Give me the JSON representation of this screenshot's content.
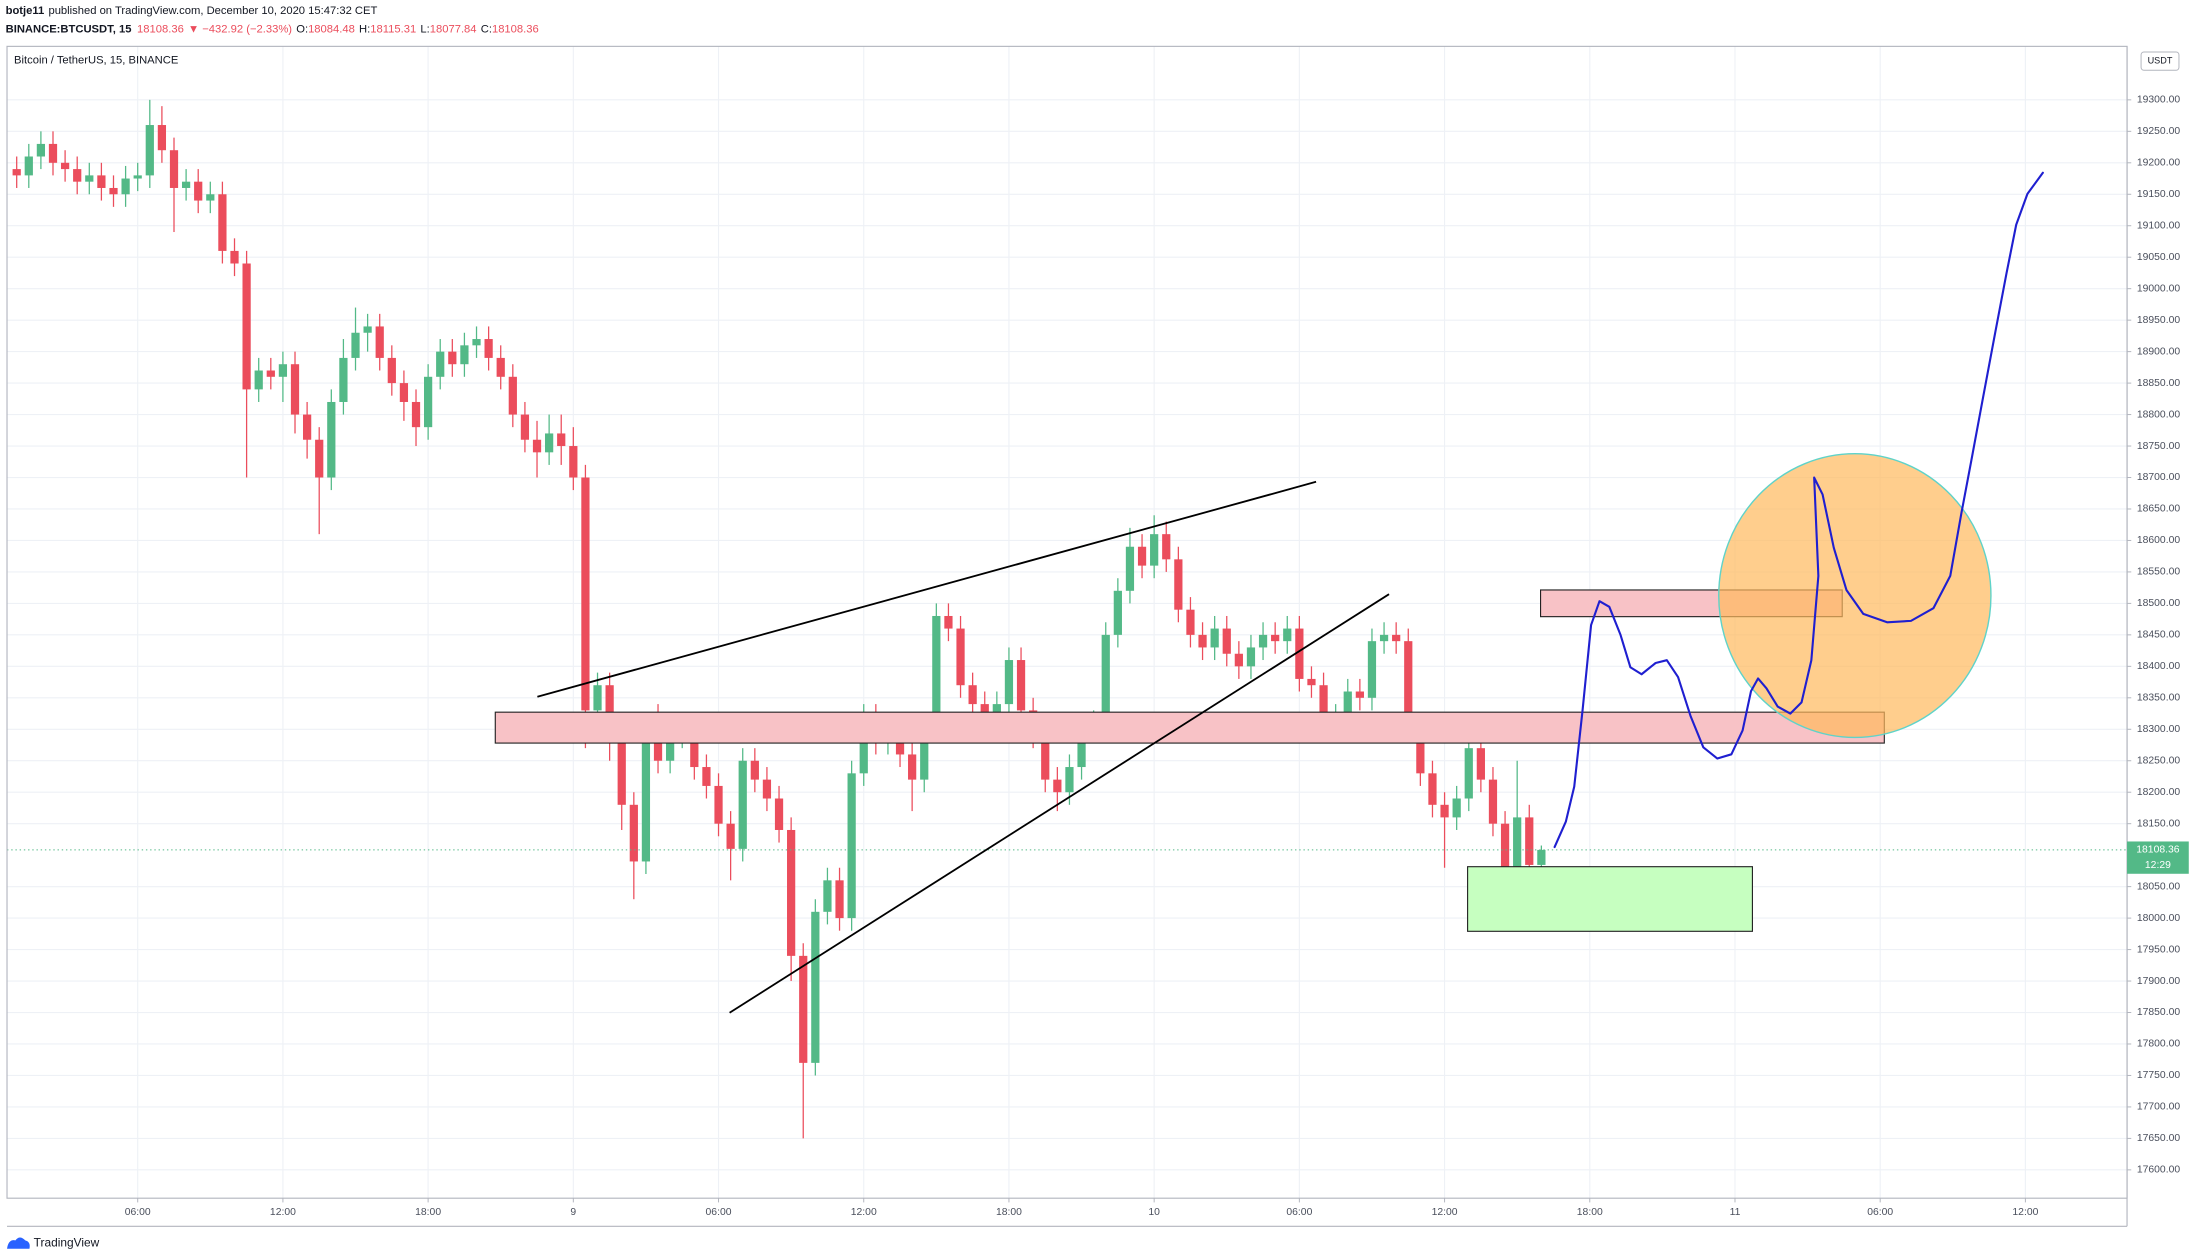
{
  "header": {
    "publisher": "botje11",
    "published": "published on TradingView.com, December 10, 2020 15:47:32 CET",
    "symbol": "BINANCE:BTCUSDT, 15",
    "change": "▼ −432.92 (−2.33%)",
    "ohlc_labels": [
      "O:",
      "H:",
      "L:",
      "C:"
    ]
  },
  "chart_data": {
    "type": "candlestick",
    "title": "Bitcoin / TetherUS, 15, BINANCE",
    "currency": "USDT",
    "countdown": "12:29",
    "up_color": "#53b987",
    "down_color": "#eb4d5c",
    "grid": true,
    "xlim": [
      0.6,
      88.2
    ],
    "xticks": [
      {
        "value": 6,
        "label": "06:00"
      },
      {
        "value": 12,
        "label": "12:00"
      },
      {
        "value": 18,
        "label": "18:00"
      },
      {
        "value": 24,
        "label": "9"
      },
      {
        "value": 30,
        "label": "06:00"
      },
      {
        "value": 36,
        "label": "12:00"
      },
      {
        "value": 42,
        "label": "18:00"
      },
      {
        "value": 48,
        "label": "10"
      },
      {
        "value": 54,
        "label": "06:00"
      },
      {
        "value": 60,
        "label": "12:00"
      },
      {
        "value": 66,
        "label": "18:00"
      },
      {
        "value": 72,
        "label": "11"
      },
      {
        "value": 78,
        "label": "06:00"
      },
      {
        "value": 84,
        "label": "12:00"
      }
    ],
    "ylim": [
      17555,
      19385
    ],
    "yticks": [
      {
        "value": 17600,
        "label": "17600.00"
      },
      {
        "value": 17650,
        "label": "17650.00"
      },
      {
        "value": 17700,
        "label": "17700.00"
      },
      {
        "value": 17750,
        "label": "17750.00"
      },
      {
        "value": 17800,
        "label": "17800.00"
      },
      {
        "value": 17850,
        "label": "17850.00"
      },
      {
        "value": 17900,
        "label": "17900.00"
      },
      {
        "value": 17950,
        "label": "17950.00"
      },
      {
        "value": 18000,
        "label": "18000.00"
      },
      {
        "value": 18050,
        "label": "18050.00"
      },
      {
        "value": 18150,
        "label": "18150.00"
      },
      {
        "value": 18200,
        "label": "18200.00"
      },
      {
        "value": 18250,
        "label": "18250.00"
      },
      {
        "value": 18300,
        "label": "18300.00"
      },
      {
        "value": 18350,
        "label": "18350.00"
      },
      {
        "value": 18400,
        "label": "18400.00"
      },
      {
        "value": 18450,
        "label": "18450.00"
      },
      {
        "value": 18500,
        "label": "18500.00"
      },
      {
        "value": 18550,
        "label": "18550.00"
      },
      {
        "value": 18600,
        "label": "18600.00"
      },
      {
        "value": 18650,
        "label": "18650.00"
      },
      {
        "value": 18700,
        "label": "18700.00"
      },
      {
        "value": 18750,
        "label": "18750.00"
      },
      {
        "value": 18800,
        "label": "18800.00"
      },
      {
        "value": 18850,
        "label": "18850.00"
      },
      {
        "value": 18900,
        "label": "18900.00"
      },
      {
        "value": 18950,
        "label": "18950.00"
      },
      {
        "value": 19000,
        "label": "19000.00"
      },
      {
        "value": 19050,
        "label": "19050.00"
      },
      {
        "value": 19100,
        "label": "19100.00"
      },
      {
        "value": 19150,
        "label": "19150.00"
      },
      {
        "value": 19200,
        "label": "19200.00"
      },
      {
        "value": 19250,
        "label": "19250.00"
      },
      {
        "value": 19300,
        "label": "19300.00"
      }
    ],
    "x": [
      1,
      1.5,
      2,
      2.5,
      3,
      3.5,
      4,
      4.5,
      5,
      5.5,
      6,
      6.5,
      7,
      7.5,
      8,
      8.5,
      9,
      9.5,
      10,
      10.5,
      11,
      11.5,
      12,
      12.5,
      13,
      13.5,
      14,
      14.5,
      15,
      15.5,
      16,
      16.5,
      17,
      17.5,
      18,
      18.5,
      19,
      19.5,
      20,
      20.5,
      21,
      21.5,
      22,
      22.5,
      23,
      23.5,
      24,
      24.5,
      25,
      25.5,
      26,
      26.5,
      27,
      27.5,
      28,
      28.5,
      29,
      29.5,
      30,
      30.5,
      31,
      31.5,
      32,
      32.5,
      33,
      33.5,
      34,
      34.5,
      35,
      35.5,
      36,
      36.5,
      37,
      37.5,
      38,
      38.5,
      39,
      39.5,
      40,
      40.5,
      41,
      41.5,
      42,
      42.5,
      43,
      43.5,
      44,
      44.5,
      45,
      45.5,
      46,
      46.5,
      47,
      47.5,
      48,
      48.5,
      49,
      49.5,
      50,
      50.5,
      51,
      51.5,
      52,
      52.5,
      53,
      53.5,
      54,
      54.5,
      55,
      55.5,
      56,
      56.5,
      57,
      57.5,
      58,
      58.5,
      59,
      59.5,
      60,
      60.5,
      61,
      61.5,
      62,
      62.5,
      63,
      63.5,
      64
    ],
    "open": [
      19190,
      19180,
      19210,
      19230,
      19200,
      19190,
      19170,
      19180,
      19160,
      19150,
      19175,
      19180,
      19260,
      19220,
      19160,
      19170,
      19140,
      19150,
      19060,
      19040,
      18840,
      18870,
      18860,
      18880,
      18800,
      18760,
      18700,
      18820,
      18890,
      18930,
      18940,
      18890,
      18850,
      18820,
      18780,
      18860,
      18900,
      18880,
      18910,
      18920,
      18890,
      18860,
      18800,
      18760,
      18740,
      18770,
      18750,
      18700,
      18330,
      18370,
      18300,
      18180,
      18090,
      18300,
      18250,
      18290,
      18300,
      18240,
      18210,
      18150,
      18110,
      18250,
      18220,
      18190,
      18140,
      17940,
      17770,
      18010,
      18060,
      18000,
      18230,
      18320,
      18280,
      18300,
      18260,
      18220,
      18300,
      18480,
      18460,
      18370,
      18340,
      18320,
      18340,
      18410,
      18330,
      18290,
      18220,
      18200,
      18240,
      18300,
      18310,
      18450,
      18520,
      18590,
      18560,
      18610,
      18570,
      18490,
      18450,
      18430,
      18460,
      18420,
      18400,
      18430,
      18450,
      18440,
      18460,
      18380,
      18370,
      18300,
      18320,
      18360,
      18350,
      18440,
      18450,
      18440,
      18300,
      18230,
      18180,
      18160,
      18190,
      18270,
      18220,
      18150,
      18080,
      18160,
      18084.48
    ],
    "high": [
      19210,
      19230,
      19250,
      19250,
      19220,
      19210,
      19200,
      19200,
      19180,
      19195,
      19200,
      19300,
      19290,
      19240,
      19190,
      19190,
      19170,
      19170,
      19080,
      19060,
      18890,
      18890,
      18900,
      18900,
      18820,
      18780,
      18840,
      18920,
      18970,
      18960,
      18960,
      18910,
      18870,
      18840,
      18880,
      18920,
      18920,
      18930,
      18940,
      18940,
      18910,
      18880,
      18820,
      18790,
      18800,
      18800,
      18780,
      18720,
      18390,
      18390,
      18320,
      18200,
      18320,
      18340,
      18310,
      18320,
      18320,
      18260,
      18230,
      18170,
      18270,
      18270,
      18240,
      18210,
      18160,
      17960,
      18030,
      18080,
      18080,
      18250,
      18340,
      18340,
      18320,
      18320,
      18280,
      18320,
      18500,
      18500,
      18480,
      18390,
      18360,
      18360,
      18430,
      18430,
      18350,
      18310,
      18240,
      18260,
      18320,
      18330,
      18470,
      18540,
      18620,
      18610,
      18640,
      18630,
      18590,
      18510,
      18470,
      18480,
      18480,
      18440,
      18450,
      18470,
      18470,
      18480,
      18480,
      18400,
      18390,
      18340,
      18380,
      18380,
      18460,
      18470,
      18470,
      18460,
      18320,
      18250,
      18200,
      18210,
      18290,
      18290,
      18240,
      18170,
      18250,
      18180,
      18115.31
    ],
    "low": [
      19160,
      19160,
      19190,
      19180,
      19170,
      19150,
      19150,
      19140,
      19130,
      19130,
      19155,
      19160,
      19200,
      19090,
      19140,
      19120,
      19120,
      19040,
      19020,
      18700,
      18820,
      18840,
      18820,
      18770,
      18730,
      18610,
      18680,
      18800,
      18870,
      18900,
      18870,
      18830,
      18790,
      18750,
      18760,
      18840,
      18860,
      18860,
      18890,
      18870,
      18840,
      18780,
      18740,
      18700,
      18720,
      18720,
      18680,
      18270,
      18310,
      18250,
      18140,
      18030,
      18070,
      18230,
      18230,
      18270,
      18220,
      18190,
      18130,
      18060,
      18090,
      18200,
      18170,
      18120,
      17900,
      17650,
      17750,
      17990,
      17980,
      17980,
      18210,
      18260,
      18260,
      18240,
      18170,
      18200,
      18280,
      18440,
      18350,
      18320,
      18300,
      18300,
      18320,
      18310,
      18270,
      18200,
      18170,
      18180,
      18220,
      18280,
      18290,
      18430,
      18500,
      18540,
      18540,
      18550,
      18470,
      18430,
      18410,
      18410,
      18400,
      18380,
      18380,
      18410,
      18420,
      18420,
      18360,
      18350,
      18280,
      18280,
      18300,
      18330,
      18330,
      18420,
      18420,
      18280,
      18210,
      18160,
      18080,
      18140,
      18170,
      18200,
      18130,
      18060,
      18060,
      18055,
      18077.84
    ],
    "close": [
      19180,
      19210,
      19230,
      19200,
      19190,
      19170,
      19180,
      19160,
      19150,
      19175,
      19180,
      19260,
      19220,
      19160,
      19170,
      19140,
      19150,
      19060,
      19040,
      18840,
      18870,
      18860,
      18880,
      18800,
      18760,
      18700,
      18820,
      18890,
      18930,
      18940,
      18890,
      18850,
      18820,
      18780,
      18860,
      18900,
      18880,
      18910,
      18920,
      18890,
      18860,
      18800,
      18760,
      18740,
      18770,
      18750,
      18700,
      18330,
      18370,
      18300,
      18180,
      18090,
      18300,
      18250,
      18290,
      18300,
      18240,
      18210,
      18150,
      18110,
      18250,
      18220,
      18190,
      18140,
      17940,
      17770,
      18010,
      18060,
      18000,
      18230,
      18320,
      18280,
      18300,
      18260,
      18220,
      18300,
      18480,
      18460,
      18370,
      18340,
      18320,
      18340,
      18410,
      18330,
      18290,
      18220,
      18200,
      18240,
      18300,
      18310,
      18450,
      18520,
      18590,
      18560,
      18610,
      18570,
      18490,
      18450,
      18430,
      18460,
      18420,
      18400,
      18430,
      18450,
      18440,
      18460,
      18380,
      18370,
      18300,
      18320,
      18360,
      18350,
      18440,
      18450,
      18440,
      18300,
      18230,
      18180,
      18160,
      18190,
      18270,
      18220,
      18150,
      18080,
      18160,
      18084.48,
      18108.36
    ]
  },
  "footer": {
    "brand": "TradingView"
  }
}
